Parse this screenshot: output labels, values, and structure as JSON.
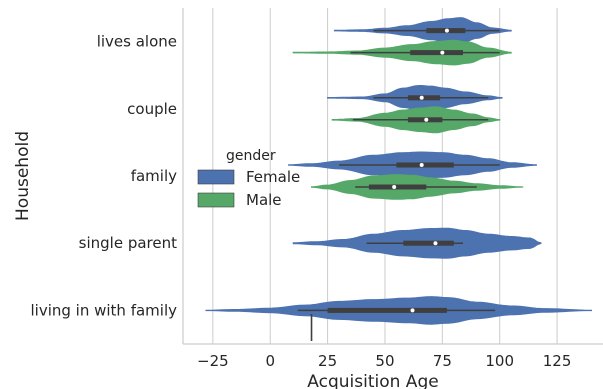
{
  "chart_data": {
    "type": "violin",
    "orientation": "horizontal",
    "xlabel": "Acquisition Age",
    "ylabel": "Household",
    "xlim": [
      -38,
      145
    ],
    "xticks": [
      -25,
      0,
      25,
      50,
      75,
      100,
      125
    ],
    "grid": "vertical",
    "categories": [
      "lives alone",
      "couple",
      "family",
      "single parent",
      "living in with family"
    ],
    "legend": {
      "title": "gender",
      "placement": "center-left",
      "entries": [
        {
          "label": "Female",
          "color": "#4c72b0"
        },
        {
          "label": "Male",
          "color": "#55a868"
        }
      ]
    },
    "violins": [
      {
        "category": "lives alone",
        "hue": "Female",
        "min": 28,
        "max": 105,
        "q1": 68,
        "median": 77,
        "q3": 85,
        "whisker_low": 45,
        "whisker_high": 100,
        "profile": [
          [
            28,
            0.02
          ],
          [
            40,
            0.06
          ],
          [
            50,
            0.18
          ],
          [
            60,
            0.38
          ],
          [
            70,
            0.7
          ],
          [
            78,
            0.92
          ],
          [
            83,
            1.0
          ],
          [
            90,
            0.6
          ],
          [
            97,
            0.2
          ],
          [
            105,
            0.03
          ]
        ]
      },
      {
        "category": "lives alone",
        "hue": "Male",
        "min": 10,
        "max": 105,
        "q1": 61,
        "median": 75,
        "q3": 84,
        "whisker_low": 35,
        "whisker_high": 100,
        "profile": [
          [
            10,
            0.02
          ],
          [
            25,
            0.05
          ],
          [
            38,
            0.12
          ],
          [
            50,
            0.35
          ],
          [
            62,
            0.62
          ],
          [
            72,
            0.85
          ],
          [
            80,
            0.95
          ],
          [
            86,
            0.82
          ],
          [
            95,
            0.35
          ],
          [
            105,
            0.03
          ]
        ]
      },
      {
        "category": "couple",
        "hue": "Female",
        "min": 25,
        "max": 101,
        "q1": 60,
        "median": 66,
        "q3": 74,
        "whisker_low": 45,
        "whisker_high": 95,
        "profile": [
          [
            25,
            0.02
          ],
          [
            40,
            0.06
          ],
          [
            50,
            0.3
          ],
          [
            58,
            0.75
          ],
          [
            65,
            0.95
          ],
          [
            70,
            0.9
          ],
          [
            76,
            0.75
          ],
          [
            85,
            0.45
          ],
          [
            95,
            0.15
          ],
          [
            101,
            0.02
          ]
        ]
      },
      {
        "category": "couple",
        "hue": "Male",
        "min": 27,
        "max": 100,
        "q1": 60,
        "median": 68,
        "q3": 75,
        "whisker_low": 36,
        "whisker_high": 95,
        "profile": [
          [
            27,
            0.02
          ],
          [
            38,
            0.1
          ],
          [
            50,
            0.5
          ],
          [
            58,
            0.75
          ],
          [
            65,
            0.9
          ],
          [
            72,
            1.0
          ],
          [
            80,
            0.75
          ],
          [
            88,
            0.45
          ],
          [
            95,
            0.15
          ],
          [
            100,
            0.02
          ]
        ]
      },
      {
        "category": "family",
        "hue": "Female",
        "min": 8,
        "max": 116,
        "q1": 55,
        "median": 66,
        "q3": 80,
        "whisker_low": 30,
        "whisker_high": 100,
        "profile": [
          [
            8,
            0.02
          ],
          [
            18,
            0.1
          ],
          [
            30,
            0.3
          ],
          [
            45,
            0.75
          ],
          [
            58,
            0.95
          ],
          [
            66,
            1.0
          ],
          [
            75,
            0.95
          ],
          [
            85,
            0.75
          ],
          [
            95,
            0.48
          ],
          [
            105,
            0.18
          ],
          [
            116,
            0.02
          ]
        ]
      },
      {
        "category": "family",
        "hue": "Male",
        "min": 18,
        "max": 110,
        "q1": 43,
        "median": 54,
        "q3": 68,
        "whisker_low": 37,
        "whisker_high": 90,
        "profile": [
          [
            18,
            0.02
          ],
          [
            25,
            0.15
          ],
          [
            35,
            0.5
          ],
          [
            45,
            0.85
          ],
          [
            55,
            0.95
          ],
          [
            62,
            0.9
          ],
          [
            70,
            0.7
          ],
          [
            80,
            0.45
          ],
          [
            90,
            0.25
          ],
          [
            100,
            0.1
          ],
          [
            110,
            0.01
          ]
        ]
      },
      {
        "category": "single parent",
        "hue": "Female",
        "min": 10,
        "max": 118,
        "q1": 58,
        "median": 72,
        "q3": 80,
        "whisker_low": 42,
        "whisker_high": 84,
        "profile": [
          [
            10,
            0.03
          ],
          [
            20,
            0.1
          ],
          [
            32,
            0.25
          ],
          [
            45,
            0.6
          ],
          [
            58,
            0.85
          ],
          [
            70,
            0.98
          ],
          [
            77,
            1.0
          ],
          [
            85,
            0.85
          ],
          [
            95,
            0.6
          ],
          [
            105,
            0.45
          ],
          [
            113,
            0.35
          ],
          [
            118,
            0.02
          ]
        ]
      },
      {
        "category": "living in with family",
        "hue": "Female",
        "min": -28,
        "max": 140,
        "q1": 25,
        "median": 62,
        "q3": 77,
        "whisker_low": 12,
        "whisker_high": 98,
        "profile": [
          [
            -28,
            0.01
          ],
          [
            -15,
            0.06
          ],
          [
            0,
            0.15
          ],
          [
            15,
            0.35
          ],
          [
            30,
            0.6
          ],
          [
            45,
            0.72
          ],
          [
            60,
            0.82
          ],
          [
            70,
            0.92
          ],
          [
            78,
            0.85
          ],
          [
            90,
            0.55
          ],
          [
            105,
            0.3
          ],
          [
            120,
            0.12
          ],
          [
            140,
            0.01
          ]
        ]
      }
    ],
    "stray_mark": {
      "x": 18
    }
  }
}
